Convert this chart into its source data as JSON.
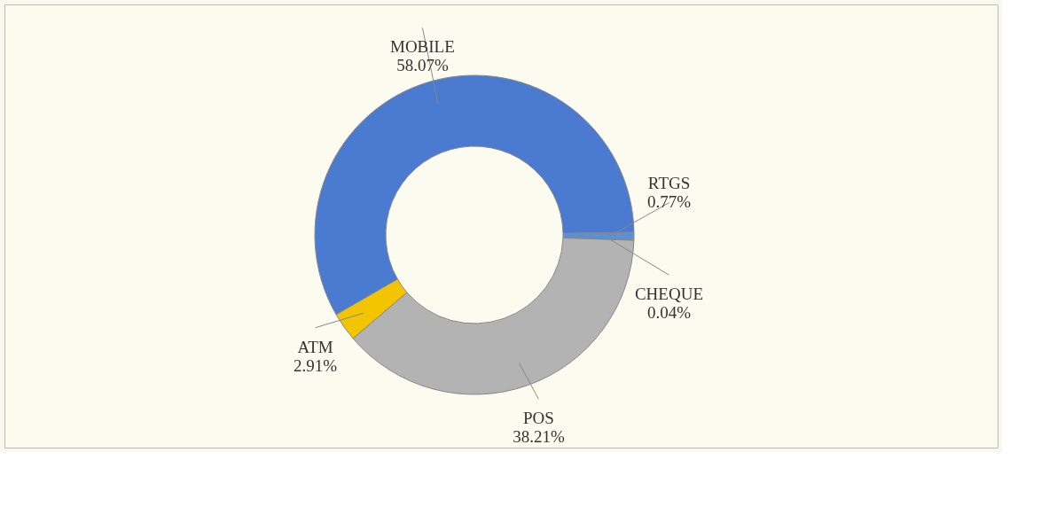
{
  "chart_data": {
    "type": "donut",
    "categories": [
      "MOBILE",
      "RTGS",
      "CHEQUE",
      "POS",
      "ATM"
    ],
    "values": [
      58.07,
      0.77,
      0.04,
      38.21,
      2.91
    ],
    "value_labels": [
      "58.07%",
      "0.77%",
      "0.04%",
      "38.21%",
      "2.91%"
    ],
    "colors": [
      "#4a7bd0",
      "#5b8fd6",
      "#3f6fb8",
      "#b3b3b3",
      "#f2c500"
    ],
    "legend": false
  }
}
